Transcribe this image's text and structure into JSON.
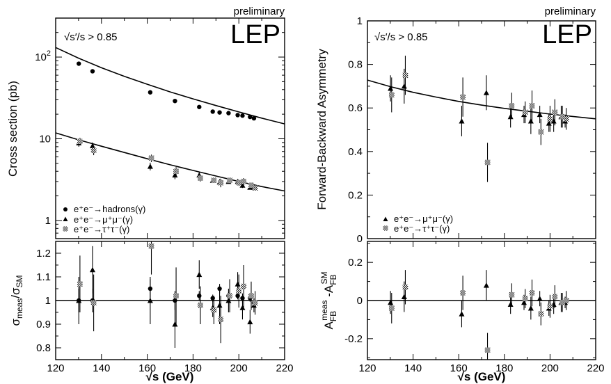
{
  "labels": {
    "preliminary": "preliminary",
    "experiment": "LEP",
    "cut": "√s′/s > 0.85",
    "xaxis": "√s (GeV)",
    "left_main_ylabel": "Cross section (pb)",
    "left_ratio_ylabel": "σmeas/σSM",
    "right_main_ylabel": "Forward-Backward Asymmetry",
    "right_ratio_ylabel": "AFBmeas-AFBSM"
  },
  "legend_left": [
    "e⁺e⁻→hadrons(γ)",
    "e⁺e⁻→μ⁺μ⁻(γ)",
    "e⁺e⁻→τ⁺τ⁻(γ)"
  ],
  "legend_right": [
    "e⁺e⁻→μ⁺μ⁻(γ)",
    "e⁺e⁻→τ⁺τ⁻(γ)"
  ],
  "x_ticks": [
    "120",
    "140",
    "160",
    "180",
    "200",
    "220"
  ],
  "chart_data": [
    {
      "id": "cross-section",
      "type": "scatter",
      "ylabel": "Cross section (pb)",
      "xlim": [
        120,
        220
      ],
      "ylim": [
        0.6,
        300
      ],
      "yscale": "log",
      "y_ticks": [
        {
          "v": 1,
          "t": "1"
        },
        {
          "v": 10,
          "t": "10"
        },
        {
          "v": 100,
          "t": "10²"
        }
      ],
      "curves": [
        {
          "name": "hadrons SM",
          "x": [
            120,
            130,
            140,
            150,
            160,
            170,
            180,
            190,
            200,
            210,
            220
          ],
          "y": [
            131,
            97,
            74,
            58,
            46.5,
            37.5,
            30.8,
            25.5,
            21.3,
            17.9,
            15.2
          ]
        },
        {
          "name": "mumu SM",
          "x": [
            120,
            130,
            140,
            150,
            160,
            170,
            180,
            190,
            200,
            210,
            220
          ],
          "y": [
            11.8,
            9.7,
            8.1,
            6.8,
            5.7,
            4.8,
            4.1,
            3.5,
            3.0,
            2.6,
            2.3
          ]
        }
      ],
      "series": [
        {
          "name": "e⁺e⁻→hadrons(γ)",
          "marker": "circle",
          "points": [
            {
              "x": 130.1,
              "y": 83
            },
            {
              "x": 136.1,
              "y": 67
            },
            {
              "x": 161.3,
              "y": 37
            },
            {
              "x": 172.1,
              "y": 29
            },
            {
              "x": 182.7,
              "y": 24.5
            },
            {
              "x": 188.6,
              "y": 21.5
            },
            {
              "x": 191.6,
              "y": 21
            },
            {
              "x": 195.5,
              "y": 20.6
            },
            {
              "x": 199.5,
              "y": 19.5
            },
            {
              "x": 201.6,
              "y": 19.2
            },
            {
              "x": 204.9,
              "y": 18.5
            },
            {
              "x": 206.6,
              "y": 17.8
            }
          ]
        },
        {
          "name": "e⁺e⁻→μ⁺μ⁻(γ)",
          "marker": "triangle",
          "points": [
            {
              "x": 130.1,
              "y": 8.9,
              "e": 0.9
            },
            {
              "x": 136.1,
              "y": 8.2,
              "e": 0.8
            },
            {
              "x": 161.3,
              "y": 4.6,
              "e": 0.5
            },
            {
              "x": 172.1,
              "y": 3.6,
              "e": 0.4
            },
            {
              "x": 182.7,
              "y": 3.6,
              "e": 0.3
            },
            {
              "x": 188.6,
              "y": 3.1,
              "e": 0.15
            },
            {
              "x": 191.6,
              "y": 2.95,
              "e": 0.25
            },
            {
              "x": 195.5,
              "y": 3.0,
              "e": 0.15
            },
            {
              "x": 199.5,
              "y": 3.0,
              "e": 0.15
            },
            {
              "x": 201.6,
              "y": 2.7,
              "e": 0.2
            },
            {
              "x": 204.9,
              "y": 2.55,
              "e": 0.15
            },
            {
              "x": 206.6,
              "y": 2.55,
              "e": 0.12
            }
          ]
        },
        {
          "name": "e⁺e⁻→τ⁺τ⁻(γ)",
          "marker": "star",
          "points": [
            {
              "x": 130.6,
              "y": 9.3,
              "e": 1.0
            },
            {
              "x": 136.6,
              "y": 7.2,
              "e": 0.9
            },
            {
              "x": 161.8,
              "y": 5.8,
              "e": 0.6
            },
            {
              "x": 172.6,
              "y": 4.0,
              "e": 0.5
            },
            {
              "x": 183.2,
              "y": 3.3,
              "e": 0.3
            },
            {
              "x": 189.1,
              "y": 3.1,
              "e": 0.2
            },
            {
              "x": 192.1,
              "y": 2.9,
              "e": 0.35
            },
            {
              "x": 196.0,
              "y": 3.1,
              "e": 0.25
            },
            {
              "x": 200.0,
              "y": 2.9,
              "e": 0.25
            },
            {
              "x": 202.1,
              "y": 3.0,
              "e": 0.3
            },
            {
              "x": 205.4,
              "y": 2.7,
              "e": 0.2
            },
            {
              "x": 207.1,
              "y": 2.5,
              "e": 0.15
            }
          ]
        }
      ]
    },
    {
      "id": "cross-section-ratio",
      "type": "scatter",
      "ylabel": "σmeas/σSM",
      "xlim": [
        120,
        220
      ],
      "ylim": [
        0.75,
        1.25
      ],
      "y_ticks": [
        {
          "v": 0.8,
          "t": "0.8"
        },
        {
          "v": 0.9,
          "t": "0.9"
        },
        {
          "v": 1.0,
          "t": "1"
        },
        {
          "v": 1.1,
          "t": "1.1"
        },
        {
          "v": 1.2,
          "t": "1.2"
        }
      ],
      "hline": 1.0,
      "series": [
        {
          "name": "e⁺e⁻→hadrons(γ)",
          "marker": "circle",
          "points": [
            {
              "x": 130.1,
              "y": 1.0,
              "e": 0.05
            },
            {
              "x": 136.1,
              "y": 1.0,
              "e": 0.05
            },
            {
              "x": 161.3,
              "y": 1.05,
              "e": 0.04
            },
            {
              "x": 172.1,
              "y": 1.0,
              "e": 0.04
            },
            {
              "x": 182.7,
              "y": 1.02,
              "e": 0.02
            },
            {
              "x": 188.6,
              "y": 1.01,
              "e": 0.015
            },
            {
              "x": 191.6,
              "y": 1.05,
              "e": 0.02
            },
            {
              "x": 195.5,
              "y": 1.02,
              "e": 0.015
            },
            {
              "x": 199.5,
              "y": 1.02,
              "e": 0.015
            },
            {
              "x": 201.6,
              "y": 1.01,
              "e": 0.02
            },
            {
              "x": 204.9,
              "y": 1.01,
              "e": 0.015
            },
            {
              "x": 206.6,
              "y": 0.99,
              "e": 0.015
            }
          ]
        },
        {
          "name": "e⁺e⁻→μ⁺μ⁻(γ)",
          "marker": "triangle",
          "points": [
            {
              "x": 130.1,
              "y": 1.0,
              "e": 0.1
            },
            {
              "x": 136.1,
              "y": 1.13,
              "e": 0.1
            },
            {
              "x": 161.3,
              "y": 1.0,
              "e": 0.1
            },
            {
              "x": 172.1,
              "y": 0.9,
              "e": 0.1
            },
            {
              "x": 182.7,
              "y": 1.11,
              "e": 0.06
            },
            {
              "x": 188.6,
              "y": 0.97,
              "e": 0.04
            },
            {
              "x": 191.6,
              "y": 0.98,
              "e": 0.08
            },
            {
              "x": 195.5,
              "y": 1.0,
              "e": 0.05
            },
            {
              "x": 199.5,
              "y": 1.07,
              "e": 0.05
            },
            {
              "x": 201.6,
              "y": 0.97,
              "e": 0.05
            },
            {
              "x": 204.9,
              "y": 0.91,
              "e": 0.05
            },
            {
              "x": 206.6,
              "y": 0.98,
              "e": 0.03
            }
          ]
        },
        {
          "name": "e⁺e⁻→τ⁺τ⁻(γ)",
          "marker": "star",
          "points": [
            {
              "x": 130.6,
              "y": 1.07,
              "e": 0.12
            },
            {
              "x": 136.6,
              "y": 0.99,
              "e": 0.12
            },
            {
              "x": 161.8,
              "y": 1.23,
              "e": 0.12
            },
            {
              "x": 172.6,
              "y": 1.02,
              "e": 0.12
            },
            {
              "x": 183.2,
              "y": 0.98,
              "e": 0.08
            },
            {
              "x": 189.1,
              "y": 0.96,
              "e": 0.06
            },
            {
              "x": 192.1,
              "y": 0.92,
              "e": 0.1
            },
            {
              "x": 196.0,
              "y": 1.02,
              "e": 0.07
            },
            {
              "x": 200.0,
              "y": 1.04,
              "e": 0.07
            },
            {
              "x": 202.1,
              "y": 1.06,
              "e": 0.09
            },
            {
              "x": 205.4,
              "y": 1.02,
              "e": 0.06
            },
            {
              "x": 207.1,
              "y": 0.99,
              "e": 0.05
            }
          ]
        }
      ]
    },
    {
      "id": "forward-backward-asymmetry",
      "type": "scatter",
      "ylabel": "Forward-Backward Asymmetry",
      "xlim": [
        120,
        220
      ],
      "ylim": [
        0,
        1
      ],
      "y_ticks": [
        {
          "v": 0,
          "t": "0"
        },
        {
          "v": 0.2,
          "t": "0.2"
        },
        {
          "v": 0.4,
          "t": "0.4"
        },
        {
          "v": 0.6,
          "t": "0.6"
        },
        {
          "v": 0.8,
          "t": "0.8"
        },
        {
          "v": 1.0,
          "t": "1"
        }
      ],
      "curves": [
        {
          "name": "SM",
          "x": [
            120,
            130,
            140,
            150,
            160,
            170,
            180,
            190,
            200,
            210,
            220
          ],
          "y": [
            0.728,
            0.698,
            0.672,
            0.65,
            0.63,
            0.613,
            0.598,
            0.585,
            0.572,
            0.561,
            0.55
          ]
        }
      ],
      "series": [
        {
          "name": "e⁺e⁻→μ⁺μ⁻(γ)",
          "marker": "triangle",
          "points": [
            {
              "x": 130.1,
              "y": 0.69,
              "e": 0.06
            },
            {
              "x": 136.1,
              "y": 0.7,
              "e": 0.08
            },
            {
              "x": 161.3,
              "y": 0.54,
              "e": 0.07
            },
            {
              "x": 172.1,
              "y": 0.67,
              "e": 0.08
            },
            {
              "x": 182.7,
              "y": 0.56,
              "e": 0.05
            },
            {
              "x": 188.6,
              "y": 0.57,
              "e": 0.04
            },
            {
              "x": 191.6,
              "y": 0.54,
              "e": 0.06
            },
            {
              "x": 195.5,
              "y": 0.57,
              "e": 0.04
            },
            {
              "x": 199.5,
              "y": 0.53,
              "e": 0.04
            },
            {
              "x": 201.6,
              "y": 0.54,
              "e": 0.05
            },
            {
              "x": 204.9,
              "y": 0.56,
              "e": 0.05
            },
            {
              "x": 206.6,
              "y": 0.54,
              "e": 0.03
            }
          ]
        },
        {
          "name": "e⁺e⁻→τ⁺τ⁻(γ)",
          "marker": "star",
          "points": [
            {
              "x": 130.6,
              "y": 0.66,
              "e": 0.08
            },
            {
              "x": 136.6,
              "y": 0.75,
              "e": 0.09
            },
            {
              "x": 161.8,
              "y": 0.65,
              "e": 0.09
            },
            {
              "x": 172.6,
              "y": 0.35,
              "e": 0.09
            },
            {
              "x": 183.2,
              "y": 0.61,
              "e": 0.06
            },
            {
              "x": 189.1,
              "y": 0.58,
              "e": 0.05
            },
            {
              "x": 192.1,
              "y": 0.61,
              "e": 0.07
            },
            {
              "x": 196.0,
              "y": 0.49,
              "e": 0.06
            },
            {
              "x": 200.0,
              "y": 0.55,
              "e": 0.06
            },
            {
              "x": 202.1,
              "y": 0.58,
              "e": 0.06
            },
            {
              "x": 205.4,
              "y": 0.56,
              "e": 0.05
            },
            {
              "x": 207.1,
              "y": 0.55,
              "e": 0.05
            }
          ]
        }
      ]
    },
    {
      "id": "asymmetry-difference",
      "type": "scatter",
      "ylabel": "AFBmeas-AFBSM",
      "xlim": [
        120,
        220
      ],
      "ylim": [
        -0.31,
        0.31
      ],
      "y_ticks": [
        {
          "v": -0.2,
          "t": "-0.2"
        },
        {
          "v": 0,
          "t": "0"
        },
        {
          "v": 0.2,
          "t": "0.2"
        }
      ],
      "hline": 0,
      "series": [
        {
          "name": "e⁺e⁻→μ⁺μ⁻(γ)",
          "marker": "triangle",
          "points": [
            {
              "x": 130.1,
              "y": -0.01,
              "e": 0.06
            },
            {
              "x": 136.1,
              "y": 0.02,
              "e": 0.08
            },
            {
              "x": 161.3,
              "y": -0.07,
              "e": 0.07
            },
            {
              "x": 172.1,
              "y": 0.08,
              "e": 0.08
            },
            {
              "x": 182.7,
              "y": -0.02,
              "e": 0.05
            },
            {
              "x": 188.6,
              "y": -0.01,
              "e": 0.04
            },
            {
              "x": 191.6,
              "y": -0.04,
              "e": 0.06
            },
            {
              "x": 195.5,
              "y": 0.01,
              "e": 0.04
            },
            {
              "x": 199.5,
              "y": -0.04,
              "e": 0.04
            },
            {
              "x": 201.6,
              "y": -0.02,
              "e": 0.05
            },
            {
              "x": 204.9,
              "y": -0.01,
              "e": 0.05
            },
            {
              "x": 206.6,
              "y": -0.01,
              "e": 0.03
            }
          ]
        },
        {
          "name": "e⁺e⁻→τ⁺τ⁻(γ)",
          "marker": "star",
          "points": [
            {
              "x": 130.6,
              "y": -0.04,
              "e": 0.08
            },
            {
              "x": 136.6,
              "y": 0.07,
              "e": 0.09
            },
            {
              "x": 161.8,
              "y": 0.04,
              "e": 0.09
            },
            {
              "x": 172.6,
              "y": -0.26,
              "e": 0.09
            },
            {
              "x": 183.2,
              "y": 0.03,
              "e": 0.06
            },
            {
              "x": 189.1,
              "y": 0.01,
              "e": 0.05
            },
            {
              "x": 192.1,
              "y": 0.04,
              "e": 0.07
            },
            {
              "x": 196.0,
              "y": -0.07,
              "e": 0.06
            },
            {
              "x": 200.0,
              "y": -0.03,
              "e": 0.06
            },
            {
              "x": 202.1,
              "y": 0.02,
              "e": 0.06
            },
            {
              "x": 205.4,
              "y": -0.01,
              "e": 0.05
            },
            {
              "x": 207.1,
              "y": 0.0,
              "e": 0.05
            }
          ]
        }
      ]
    }
  ]
}
